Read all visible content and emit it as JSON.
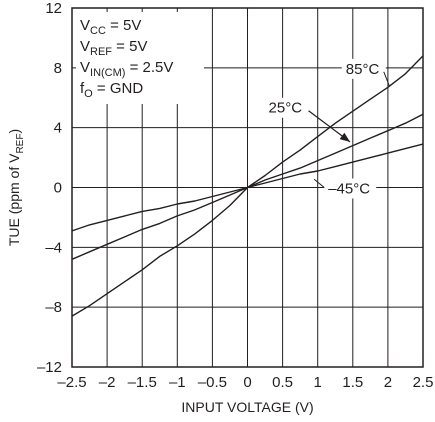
{
  "chart_data": {
    "type": "line",
    "title": "",
    "xlabel": "INPUT VOLTAGE (V)",
    "ylabel": {
      "main": "TUE (ppm of V",
      "sub": "REF",
      "close": ")"
    },
    "xlim": [
      -2.5,
      2.5
    ],
    "ylim": [
      -12,
      12
    ],
    "x_ticks": [
      -2.5,
      -2,
      -1.5,
      -1,
      -0.5,
      0,
      0.5,
      1,
      1.5,
      2,
      2.5
    ],
    "x_tick_labels": [
      "–2.5",
      "–2",
      "–1.5",
      "–1",
      "–0.5",
      "0",
      "0.5",
      "1",
      "1.5",
      "2",
      "2.5"
    ],
    "y_ticks": [
      12,
      8,
      4,
      0,
      -4,
      -8,
      -12
    ],
    "y_tick_labels": [
      "12",
      "8",
      "4",
      "0",
      "–4",
      "–8",
      "–12"
    ],
    "grid": true,
    "conditions": [
      {
        "main": "V",
        "sub": "CC",
        "rest": " = 5V"
      },
      {
        "main": "V",
        "sub": "REF",
        "rest": " = 5V"
      },
      {
        "main": "V",
        "sub": "IN(CM)",
        "rest": " = 2.5V"
      },
      {
        "main": "f",
        "sub": "O",
        "rest": " = GND"
      }
    ],
    "series": [
      {
        "name": "85°C",
        "x": [
          -2.5,
          -2.25,
          -2.0,
          -1.75,
          -1.5,
          -1.25,
          -1.0,
          -0.75,
          -0.5,
          -0.25,
          0.0,
          0.25,
          0.5,
          0.75,
          1.0,
          1.25,
          1.5,
          1.75,
          2.0,
          2.25,
          2.5
        ],
        "y": [
          -8.6,
          -7.9,
          -7.1,
          -6.3,
          -5.5,
          -4.6,
          -3.9,
          -3.1,
          -2.2,
          -1.2,
          0.0,
          0.8,
          1.7,
          2.5,
          3.4,
          4.3,
          5.1,
          5.9,
          6.7,
          7.6,
          8.8
        ]
      },
      {
        "name": "25°C",
        "x": [
          -2.5,
          -2.25,
          -2.0,
          -1.75,
          -1.5,
          -1.25,
          -1.0,
          -0.75,
          -0.5,
          -0.25,
          0.0,
          0.25,
          0.5,
          0.75,
          1.0,
          1.25,
          1.5,
          1.75,
          2.0,
          2.25,
          2.5
        ],
        "y": [
          -4.8,
          -4.3,
          -3.8,
          -3.3,
          -2.8,
          -2.4,
          -1.9,
          -1.5,
          -1.0,
          -0.5,
          0.0,
          0.5,
          0.9,
          1.3,
          1.8,
          2.3,
          2.8,
          3.3,
          3.8,
          4.3,
          4.9
        ]
      },
      {
        "name": "–45°C",
        "x": [
          -2.5,
          -2.25,
          -2.0,
          -1.75,
          -1.5,
          -1.25,
          -1.0,
          -0.75,
          -0.5,
          -0.25,
          0.0,
          0.25,
          0.5,
          0.75,
          1.0,
          1.25,
          1.5,
          1.75,
          2.0,
          2.25,
          2.5
        ],
        "y": [
          -2.9,
          -2.5,
          -2.2,
          -1.9,
          -1.6,
          -1.4,
          -1.1,
          -0.9,
          -0.6,
          -0.3,
          0.0,
          0.3,
          0.6,
          0.9,
          1.1,
          1.4,
          1.7,
          2.0,
          2.3,
          2.6,
          2.9
        ]
      }
    ],
    "annotations": [
      {
        "text": "85°C",
        "series": "85°C"
      },
      {
        "text": "25°C",
        "series": "25°C"
      },
      {
        "text": "–45°C",
        "series": "–45°C"
      }
    ]
  }
}
